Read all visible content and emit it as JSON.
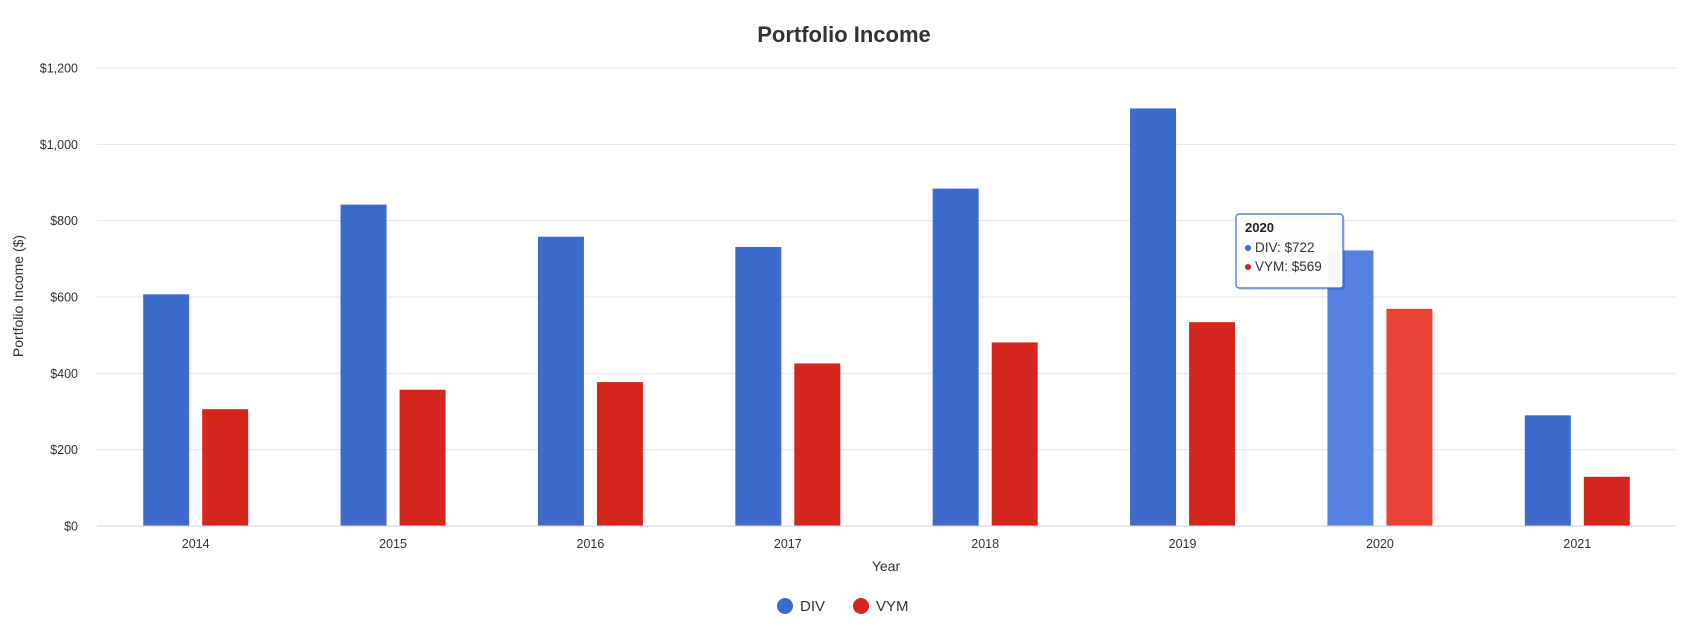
{
  "chart_data": {
    "type": "bar",
    "title": "Portfolio Income",
    "xlabel": "Year",
    "ylabel": "Portfolio Income ($)",
    "ylim": [
      0,
      1200
    ],
    "y_ticks": [
      "$0",
      "$200",
      "$400",
      "$600",
      "$800",
      "$1,000",
      "$1,200"
    ],
    "y_tick_values": [
      0,
      200,
      400,
      600,
      800,
      1000,
      1200
    ],
    "categories": [
      "2014",
      "2015",
      "2016",
      "2017",
      "2018",
      "2019",
      "2020",
      "2021"
    ],
    "series": [
      {
        "name": "DIV",
        "color": "#3d6bcb",
        "hover_color": "#5582e0",
        "values": [
          607,
          842,
          758,
          731,
          884,
          1094,
          722,
          290
        ]
      },
      {
        "name": "VYM",
        "color": "#d4261c",
        "hover_color": "#ea4335",
        "values": [
          306,
          357,
          377,
          426,
          481,
          534,
          569,
          129
        ]
      }
    ],
    "grid": true,
    "legend_position": "bottom-center",
    "highlighted_category": "2020",
    "tooltip": {
      "title": "2020",
      "lines": [
        "DIV: $722",
        "VYM: $569"
      ]
    }
  }
}
